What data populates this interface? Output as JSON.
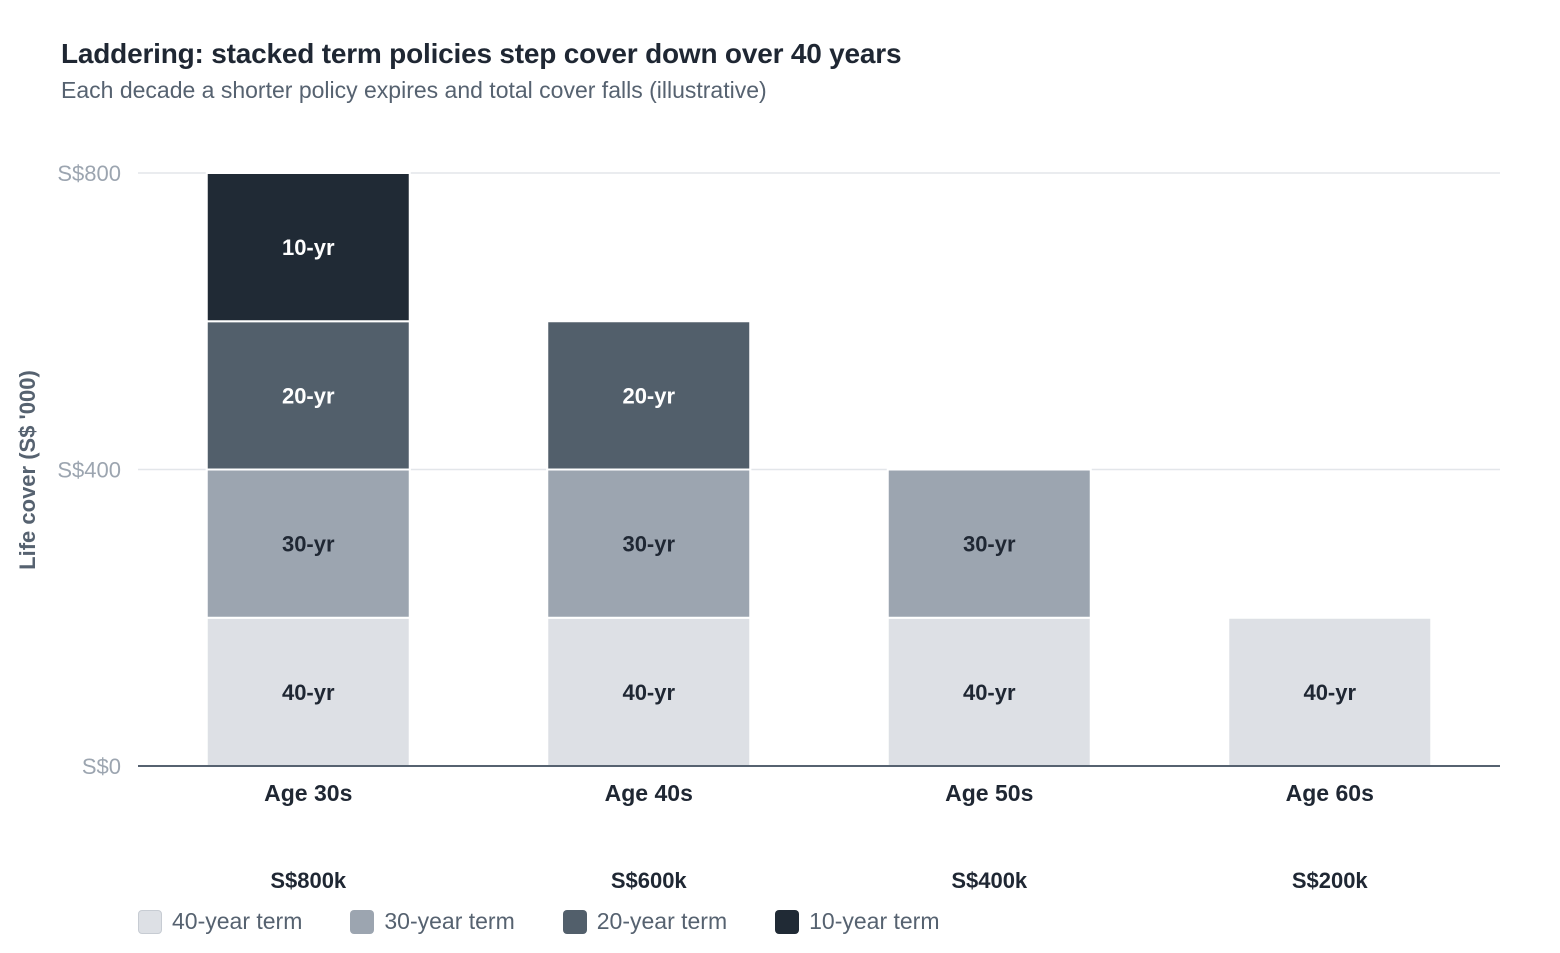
{
  "title": "Laddering: stacked term policies step cover down over 40 years",
  "subtitle": "Each decade a shorter policy expires and total cover falls (illustrative)",
  "colors": {
    "40-yr": "#dde0e5",
    "30-yr": "#9ca5b0",
    "20-yr": "#525f6b",
    "10-yr": "#202a35",
    "grid": "#e3e6ea",
    "axis": "#566270",
    "tick_text": "#9ca5b0",
    "label_dark": "#1f2733",
    "label_light": "#ffffff"
  },
  "chart_data": {
    "type": "bar",
    "stacked": true,
    "title": "Laddering: stacked term policies step cover down over 40 years",
    "subtitle": "Each decade a shorter policy expires and total cover falls (illustrative)",
    "xlabel": "",
    "ylabel": "Life cover (S$ '000)",
    "ylim": [
      0,
      800
    ],
    "yticks": [
      0,
      400,
      800
    ],
    "ytick_labels": [
      "S$0",
      "S$400",
      "S$800"
    ],
    "grid": true,
    "legend_position": "bottom-left",
    "categories": [
      "Age 30s",
      "Age 40s",
      "Age 50s",
      "Age 60s"
    ],
    "totals": [
      "S$800k",
      "S$600k",
      "S$400k",
      "S$200k"
    ],
    "series": [
      {
        "name": "40-year term",
        "segment_label": "40-yr",
        "values": [
          200,
          200,
          200,
          200
        ]
      },
      {
        "name": "30-year term",
        "segment_label": "30-yr",
        "values": [
          200,
          200,
          200,
          0
        ]
      },
      {
        "name": "20-year term",
        "segment_label": "20-yr",
        "values": [
          200,
          200,
          0,
          0
        ]
      },
      {
        "name": "10-year term",
        "segment_label": "10-yr",
        "values": [
          200,
          0,
          0,
          0
        ]
      }
    ]
  }
}
